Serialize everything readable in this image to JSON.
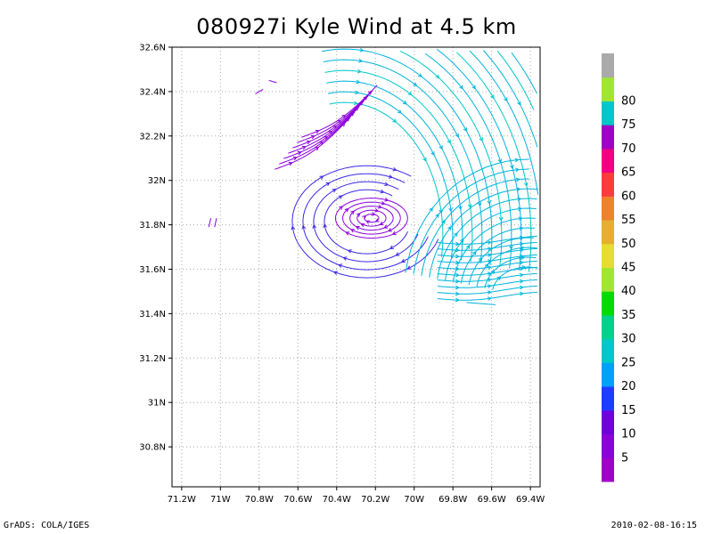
{
  "title": "080927i Kyle Wind at 4.5 km",
  "footer": {
    "left": "GrADS: COLA/IGES",
    "right": "2010-02-08-16:15"
  },
  "map": {
    "lon_range": [
      -71.25,
      -69.35
    ],
    "lat_range": [
      30.62,
      32.6
    ],
    "lon_ticks": [
      {
        "value": -71.2,
        "label": "71.2W"
      },
      {
        "value": -71.0,
        "label": "71W"
      },
      {
        "value": -70.8,
        "label": "70.8W"
      },
      {
        "value": -70.6,
        "label": "70.6W"
      },
      {
        "value": -70.4,
        "label": "70.4W"
      },
      {
        "value": -70.2,
        "label": "70.2W"
      },
      {
        "value": -70.0,
        "label": "70W"
      },
      {
        "value": -69.8,
        "label": "69.8W"
      },
      {
        "value": -69.6,
        "label": "69.6W"
      },
      {
        "value": -69.4,
        "label": "69.4W"
      }
    ],
    "lat_ticks": [
      {
        "value": 32.6,
        "label": "32.6N"
      },
      {
        "value": 32.4,
        "label": "32.4N"
      },
      {
        "value": 32.2,
        "label": "32.2N"
      },
      {
        "value": 32.0,
        "label": "32N"
      },
      {
        "value": 31.8,
        "label": "31.8N"
      },
      {
        "value": 31.6,
        "label": "31.6N"
      },
      {
        "value": 31.4,
        "label": "31.4N"
      },
      {
        "value": 31.2,
        "label": "31.2N"
      },
      {
        "value": 31.0,
        "label": "31N"
      },
      {
        "value": 30.8,
        "label": "30.8N"
      }
    ],
    "grid": "dotted",
    "storm_center": {
      "lon": -70.22,
      "lat": 31.83
    }
  },
  "colorbar": {
    "levels": [
      {
        "label": "",
        "color": "#a000c8"
      },
      {
        "label": "5",
        "color": "#8c00dc"
      },
      {
        "label": "10",
        "color": "#6e00dc"
      },
      {
        "label": "15",
        "color": "#1e3cff"
      },
      {
        "label": "20",
        "color": "#00a0ff"
      },
      {
        "label": "25",
        "color": "#00c8c8"
      },
      {
        "label": "30",
        "color": "#00d28c"
      },
      {
        "label": "35",
        "color": "#00dc00"
      },
      {
        "label": "40",
        "color": "#a0e632"
      },
      {
        "label": "45",
        "color": "#e6dc32"
      },
      {
        "label": "50",
        "color": "#e6af2d"
      },
      {
        "label": "55",
        "color": "#f08228"
      },
      {
        "label": "60",
        "color": "#fa3c3c"
      },
      {
        "label": "65",
        "color": "#f00082"
      },
      {
        "label": "70",
        "color": "#a000c8"
      },
      {
        "label": "75",
        "color": "#00c8c8"
      },
      {
        "label": "80",
        "color": "#a0e632"
      },
      {
        "label": "",
        "color": "#aaaaaa"
      }
    ]
  },
  "streamlines": {
    "colors": {
      "weak": "#8c00dc",
      "moderate": "#3c28e6",
      "strong": "#00b4dc",
      "strongest": "#00c8c8"
    }
  }
}
